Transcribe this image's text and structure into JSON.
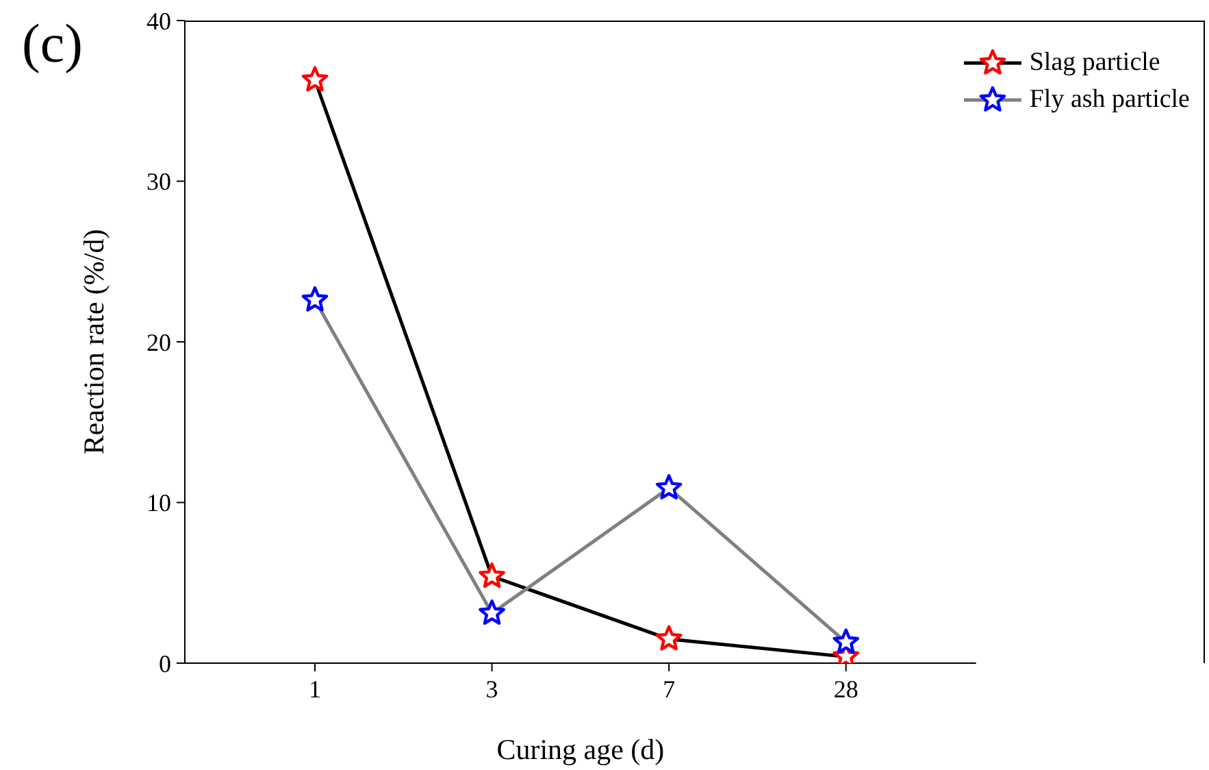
{
  "chart_data": {
    "type": "line",
    "xlabel": "Curing age (d)",
    "ylabel": "Reaction rate (%/d)",
    "categories": [
      "1",
      "3",
      "7",
      "28"
    ],
    "ylim": [
      0,
      40
    ],
    "yticks": [
      0,
      10,
      20,
      30,
      40
    ],
    "grid": false,
    "legend": "top right",
    "marker": "star",
    "line_style": "solid",
    "annotations": [
      "(c)"
    ],
    "series": [
      {
        "name": "Slag particle",
        "color": "#000000",
        "colors": [
          "#ff0000",
          "#ff0000",
          "#ff0000",
          "#ff0000"
        ],
        "values": [
          36.3,
          5.4,
          1.5,
          0.4
        ]
      },
      {
        "name": "Fly ash particle",
        "color": "#808080",
        "colors": [
          "#0000ff",
          "#0000ff",
          "#0000ff",
          "#0000ff"
        ],
        "values": [
          22.6,
          3.1,
          10.9,
          1.3
        ]
      }
    ]
  }
}
